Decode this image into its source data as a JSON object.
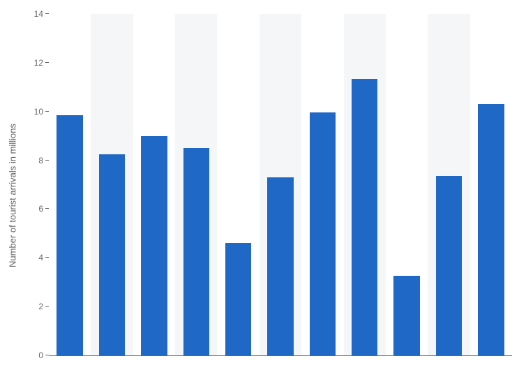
{
  "chart": {
    "type": "bar",
    "ylabel": "Number of tourist arrivals in millions",
    "label_fontsize": 13,
    "tick_fontsize": 12,
    "ylim": [
      0,
      14
    ],
    "ytick_step": 2,
    "yticks": [
      0,
      2,
      4,
      6,
      8,
      10,
      12,
      14
    ],
    "values": [
      9.85,
      8.25,
      9.0,
      8.5,
      4.6,
      7.3,
      9.95,
      11.35,
      3.25,
      7.35,
      10.3
    ],
    "bar_color": "#2068c6",
    "background_color": "#ffffff",
    "stripe_color": "#f5f6f8",
    "grid_color": "#ffffff",
    "axis_color": "#666666",
    "text_color": "#666666",
    "bar_width_ratio": 0.62,
    "n_bars": 11
  }
}
